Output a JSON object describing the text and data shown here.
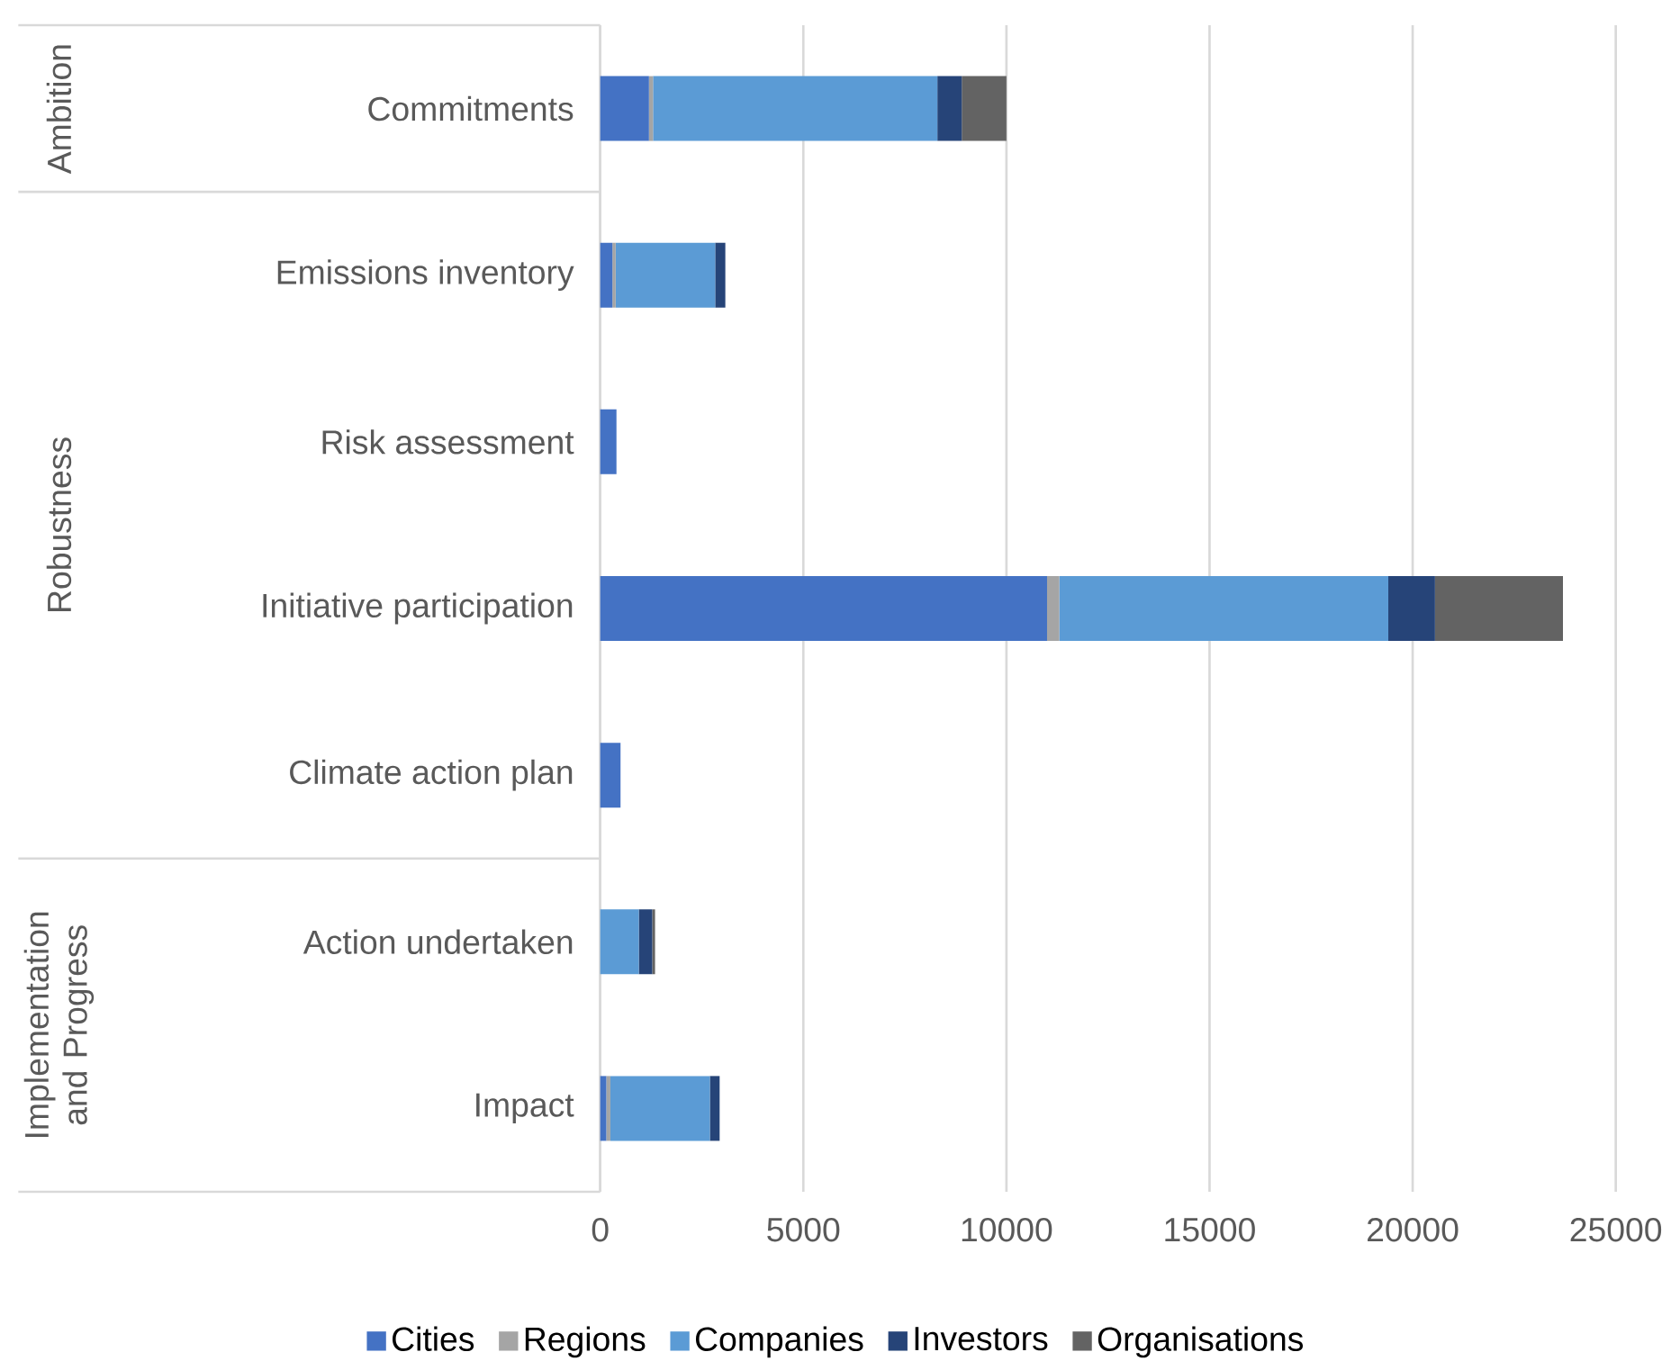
{
  "chart_data": {
    "type": "bar",
    "orientation": "horizontal",
    "stacked": true,
    "categories": [
      "Commitments",
      "Emissions inventory",
      "Risk assessment",
      "Initiative participation",
      "Climate action plan",
      "Action undertaken",
      "Impact"
    ],
    "series": [
      {
        "name": "Cities",
        "color": "#4472c4",
        "values": [
          1200,
          300,
          400,
          11000,
          500,
          0,
          150
        ]
      },
      {
        "name": "Regions",
        "color": "#a5a5a5",
        "values": [
          100,
          80,
          null,
          300,
          0,
          null,
          100
        ]
      },
      {
        "name": "Companies",
        "color": "#5b9bd5",
        "values": [
          7000,
          2450,
          0,
          8100,
          0,
          950,
          2450
        ]
      },
      {
        "name": "Investors",
        "color": "#264478",
        "values": [
          600,
          250,
          0,
          1150,
          0,
          330,
          240
        ]
      },
      {
        "name": "Organisations",
        "color": "#636363",
        "values": [
          1100,
          0,
          0,
          3150,
          0,
          70,
          0
        ]
      }
    ],
    "xlim": [
      0,
      25000
    ],
    "xticks": [
      0,
      5000,
      10000,
      15000,
      20000,
      25000
    ],
    "grid": "x",
    "legend": "bottom",
    "annotations": [
      "Ambition",
      "Robustness",
      "Implementation and Progress"
    ]
  }
}
